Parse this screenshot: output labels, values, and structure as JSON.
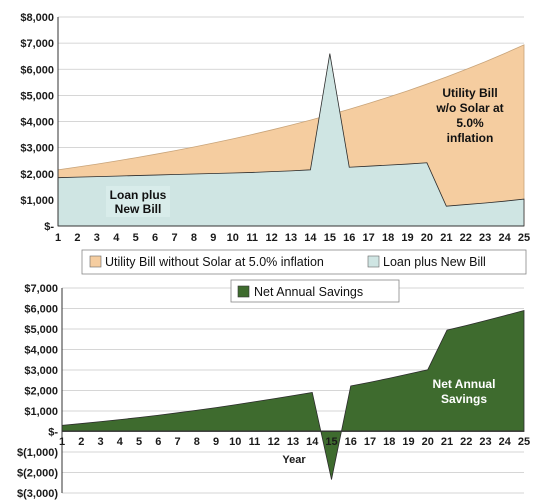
{
  "chart_data": [
    {
      "type": "area",
      "x": [
        1,
        2,
        3,
        4,
        5,
        6,
        7,
        8,
        9,
        10,
        11,
        12,
        13,
        14,
        15,
        16,
        17,
        18,
        19,
        20,
        21,
        22,
        23,
        24,
        25
      ],
      "ylim": [
        0,
        8000
      ],
      "yticks": [
        "$-",
        "$1,000",
        "$2,000",
        "$3,000",
        "$4,000",
        "$5,000",
        "$6,000",
        "$7,000",
        "$8,000"
      ],
      "series": [
        {
          "name": "Utility Bill without Solar at 5.0% inflation",
          "color": "#f5cda0",
          "values": [
            2150,
            2258,
            2370,
            2489,
            2613,
            2744,
            2881,
            3025,
            3176,
            3335,
            3502,
            3677,
            3861,
            4054,
            4257,
            4470,
            4693,
            4928,
            5174,
            5433,
            5705,
            5990,
            6289,
            6604,
            6934
          ]
        },
        {
          "name": "Loan plus New Bill",
          "color": "#cfe5e3",
          "values": [
            1850,
            1870,
            1890,
            1910,
            1930,
            1950,
            1970,
            1990,
            2010,
            2030,
            2050,
            2080,
            2110,
            2150,
            6600,
            2250,
            2290,
            2330,
            2370,
            2420,
            760,
            820,
            880,
            950,
            1030
          ]
        }
      ],
      "annotations": {
        "bill_label": "Utility Bill\nw/o Solar at\n5.0%\ninflation",
        "loan_label": "Loan plus\nNew Bill"
      }
    },
    {
      "type": "area",
      "x": [
        1,
        2,
        3,
        4,
        5,
        6,
        7,
        8,
        9,
        10,
        11,
        12,
        13,
        14,
        15,
        16,
        17,
        18,
        19,
        20,
        21,
        22,
        23,
        24,
        25
      ],
      "ylim": [
        -3000,
        7000
      ],
      "yticks": [
        "$(3,000)",
        "$(2,000)",
        "$(1,000)",
        "$-",
        "$1,000",
        "$2,000",
        "$3,000",
        "$4,000",
        "$5,000",
        "$6,000",
        "$7,000"
      ],
      "xlabel": "Year",
      "series": [
        {
          "name": "Net Annual Savings",
          "color": "#3e6b2e",
          "values": [
            300,
            388,
            480,
            579,
            683,
            794,
            911,
            1035,
            1166,
            1305,
            1452,
            1597,
            1751,
            1904,
            -2343,
            2220,
            2403,
            2598,
            2804,
            3013,
            4945,
            5170,
            5409,
            5654,
            5904
          ]
        }
      ],
      "annotations": {
        "savings_label": "Net Annual\nSavings"
      }
    }
  ]
}
